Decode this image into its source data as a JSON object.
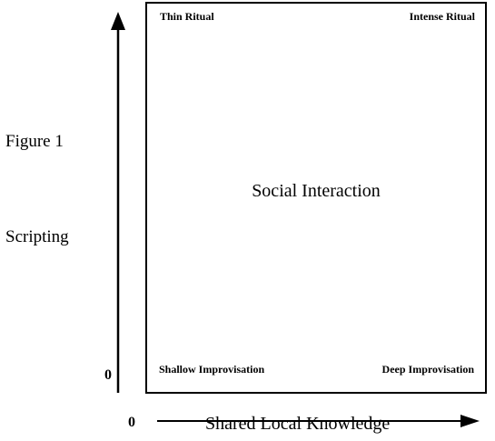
{
  "figure_label": "Figure 1",
  "y_axis": {
    "label": "Scripting",
    "origin": "0"
  },
  "x_axis": {
    "label": "Shared Local Knowledge",
    "origin": "0"
  },
  "quadrants": {
    "top_left": "Thin Ritual",
    "top_right": "Intense Ritual",
    "bottom_left": "Shallow Improvisation",
    "bottom_right": "Deep Improvisation",
    "center": "Social Interaction"
  }
}
